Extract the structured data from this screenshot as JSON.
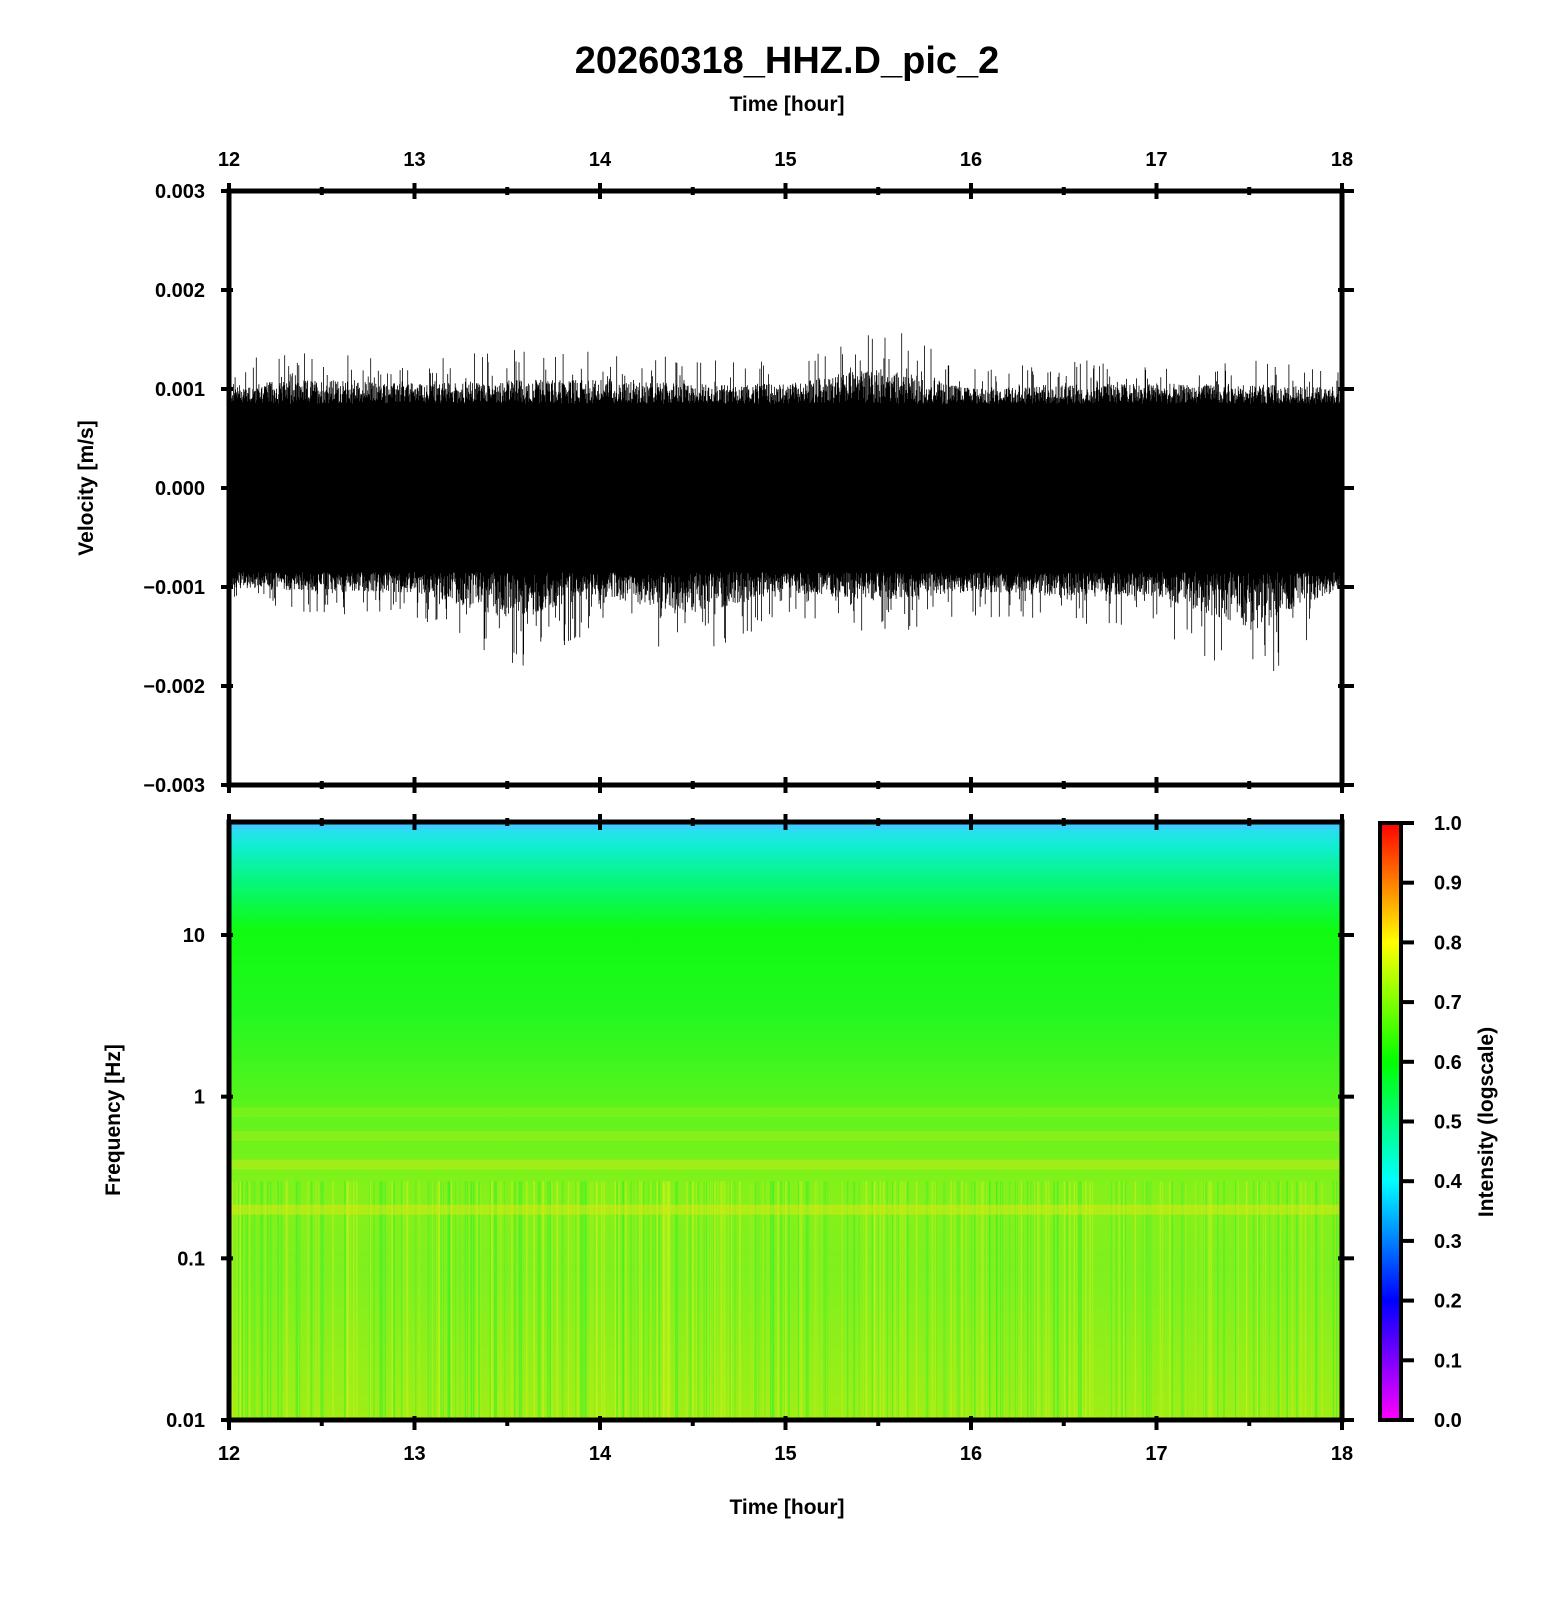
{
  "title": "20260318_HHZ.D_pic_2",
  "chart_data": [
    {
      "type": "line",
      "name": "waveform",
      "x_label": "Time [hour]",
      "y_label": "Velocity [m/s]",
      "xlim": [
        12,
        18
      ],
      "ylim": [
        -0.003,
        0.003
      ],
      "x_ticks": [
        "12",
        "13",
        "14",
        "15",
        "16",
        "17",
        "18"
      ],
      "y_ticks": [
        "0.003",
        "0.002",
        "0.001",
        "0.000",
        "−0.001",
        "−0.002",
        "−0.003"
      ],
      "envelope_description": "continuous noise, dense band about ±0.0008 m/s",
      "series": [
        {
          "x": [
            12.0,
            12.5,
            13.0,
            13.5,
            14.0,
            14.5,
            15.0,
            15.5,
            16.0,
            16.5,
            17.0,
            17.5,
            18.0
          ],
          "y_max": [
            0.0013,
            0.0014,
            0.0013,
            0.0014,
            0.0014,
            0.0013,
            0.0013,
            0.0017,
            0.0012,
            0.0013,
            0.0013,
            0.0013,
            0.0012
          ],
          "y_min": [
            -0.0012,
            -0.0013,
            -0.0013,
            -0.0019,
            -0.0014,
            -0.0018,
            -0.0013,
            -0.0015,
            -0.0013,
            -0.0014,
            -0.0014,
            -0.0021,
            -0.0012
          ]
        }
      ]
    },
    {
      "type": "heatmap",
      "name": "spectrogram",
      "x_label": "Time [hour]",
      "y_label": "Frequency [Hz]",
      "xlim": [
        12,
        18
      ],
      "ylim": [
        0.01,
        50
      ],
      "y_scale": "log",
      "x_ticks": [
        "12",
        "13",
        "14",
        "15",
        "16",
        "17",
        "18"
      ],
      "y_ticks": [
        "10",
        "1",
        "0.1",
        "0.01"
      ],
      "colorbar": {
        "label": "Intensity (logscale)",
        "range": [
          0.0,
          1.0
        ],
        "ticks": [
          "1.0",
          "0.9",
          "0.8",
          "0.7",
          "0.6",
          "0.5",
          "0.4",
          "0.3",
          "0.2",
          "0.1",
          "0.0"
        ],
        "colors": [
          "#ff00ff",
          "#0000ff",
          "#00ffff",
          "#00ff00",
          "#ffff00",
          "#ff0000"
        ]
      },
      "intensity_by_frequency": [
        {
          "freq": 50,
          "intensity": 0.45
        },
        {
          "freq": 20,
          "intensity": 0.58
        },
        {
          "freq": 10,
          "intensity": 0.62
        },
        {
          "freq": 1,
          "intensity": 0.67
        },
        {
          "freq": 0.35,
          "intensity": 0.72
        },
        {
          "freq": 0.2,
          "intensity": 0.74
        },
        {
          "freq": 0.1,
          "intensity": 0.7
        },
        {
          "freq": 0.01,
          "intensity": 0.72
        }
      ]
    }
  ]
}
